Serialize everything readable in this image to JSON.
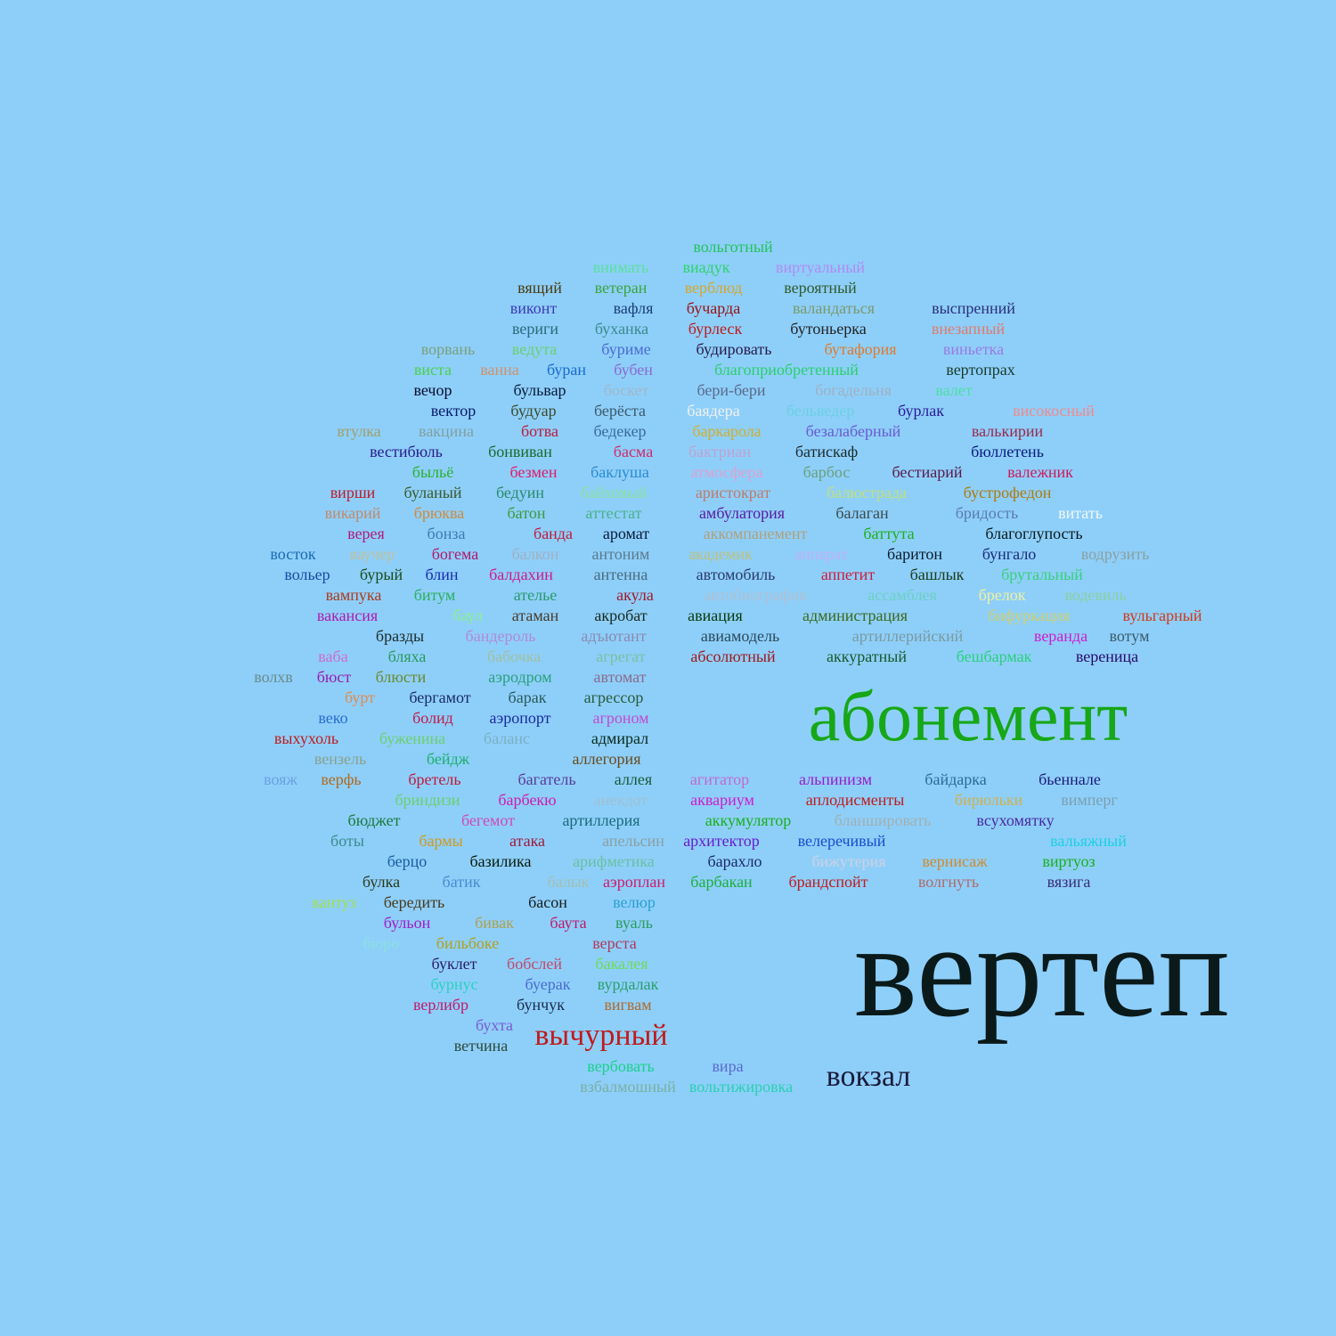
{
  "background": "#8ecffa",
  "words": [
    {
      "text": "вольготный",
      "color": "#22c35a"
    },
    {
      "text": "внимать",
      "color": "#5be09a"
    },
    {
      "text": "виадук",
      "color": "#2ed36a"
    },
    {
      "text": "виртуальный",
      "color": "#b28af0"
    },
    {
      "text": "вящий",
      "color": "#4a3a10"
    },
    {
      "text": "ветеран",
      "color": "#3aa53a"
    },
    {
      "text": "верблюд",
      "color": "#d6a62a"
    },
    {
      "text": "вероятный",
      "color": "#2f5a2a"
    },
    {
      "text": "виконт",
      "color": "#3b3ab5"
    },
    {
      "text": "вафля",
      "color": "#1b3d7a"
    },
    {
      "text": "бучарда",
      "color": "#9a1010"
    },
    {
      "text": "валандаться",
      "color": "#7a9a6a"
    },
    {
      "text": "выспренний",
      "color": "#2a2f7a"
    },
    {
      "text": "вериги",
      "color": "#2a6a7a"
    },
    {
      "text": "буханка",
      "color": "#3a8a8a"
    },
    {
      "text": "бурлеск",
      "color": "#c01a1a"
    },
    {
      "text": "бутоньерка",
      "color": "#222222"
    },
    {
      "text": "внезапный",
      "color": "#e07a6a"
    },
    {
      "text": "ворвань",
      "color": "#7aa07a"
    },
    {
      "text": "ведута",
      "color": "#6ad06a"
    },
    {
      "text": "буриме",
      "color": "#4a6ad0"
    },
    {
      "text": "будировать",
      "color": "#2a1a4a"
    },
    {
      "text": "бутафория",
      "color": "#e07a2a"
    },
    {
      "text": "виньетка",
      "color": "#9a7ae0"
    },
    {
      "text": "виста",
      "color": "#4ad04a"
    },
    {
      "text": "ванна",
      "color": "#d0906a"
    },
    {
      "text": "буран",
      "color": "#1a6ad0"
    },
    {
      "text": "бубен",
      "color": "#8a6ad0"
    },
    {
      "text": "благоприобретенный",
      "color": "#2ad06a"
    },
    {
      "text": "вертопрах",
      "color": "#1a3a2a"
    },
    {
      "text": "вечор",
      "color": "#0a0a2a"
    },
    {
      "text": "бульвар",
      "color": "#0a1a3a"
    },
    {
      "text": "боскет",
      "color": "#a0b8c8"
    },
    {
      "text": "бери-бери",
      "color": "#5a6a8a"
    },
    {
      "text": "богадельня",
      "color": "#a0b0c0"
    },
    {
      "text": "валет",
      "color": "#4ae0a0"
    },
    {
      "text": "вектор",
      "color": "#0a1a6a"
    },
    {
      "text": "будуар",
      "color": "#3a4a2a"
    },
    {
      "text": "берёста",
      "color": "#3a5a6a"
    },
    {
      "text": "баядера",
      "color": "#f0f0f0"
    },
    {
      "text": "бельведер",
      "color": "#6ad0e0"
    },
    {
      "text": "бурлак",
      "color": "#2a1a9a"
    },
    {
      "text": "високосный",
      "color": "#f08a8a"
    },
    {
      "text": "втулка",
      "color": "#a0a06a"
    },
    {
      "text": "вакцина",
      "color": "#80a0a0"
    },
    {
      "text": "ботва",
      "color": "#c01a3a"
    },
    {
      "text": "бедекер",
      "color": "#3a6a9a"
    },
    {
      "text": "баркарола",
      "color": "#d0b02a"
    },
    {
      "text": "безалаберный",
      "color": "#6a5ad0"
    },
    {
      "text": "валькирии",
      "color": "#9a2a4a"
    },
    {
      "text": "вестибюль",
      "color": "#2a1a8a"
    },
    {
      "text": "бонвиван",
      "color": "#1a6a2a"
    },
    {
      "text": "басма",
      "color": "#d02a6a"
    },
    {
      "text": "бактриан",
      "color": "#c0a0d0"
    },
    {
      "text": "батискаф",
      "color": "#1a2a2a"
    },
    {
      "text": "бюллетень",
      "color": "#0a1a7a"
    },
    {
      "text": "быльё",
      "color": "#2ab02a"
    },
    {
      "text": "безмен",
      "color": "#e01a6a"
    },
    {
      "text": "баклуша",
      "color": "#2a8ad0"
    },
    {
      "text": "атмосфера",
      "color": "#e0a0d0"
    },
    {
      "text": "барбос",
      "color": "#6aa07a"
    },
    {
      "text": "бестиарий",
      "color": "#5a1a4a"
    },
    {
      "text": "валежник",
      "color": "#d01a5a"
    },
    {
      "text": "вирши",
      "color": "#c01a2a"
    },
    {
      "text": "буланый",
      "color": "#3a5a2a"
    },
    {
      "text": "бедуин",
      "color": "#2a8a6a"
    },
    {
      "text": "байховый",
      "color": "#8ae09a"
    },
    {
      "text": "аристократ",
      "color": "#c07a6a"
    },
    {
      "text": "балюстрада",
      "color": "#c0e07a"
    },
    {
      "text": "бустрофедон",
      "color": "#b07a0a"
    },
    {
      "text": "викарий",
      "color": "#c08a6a"
    },
    {
      "text": "брюква",
      "color": "#d08a3a"
    },
    {
      "text": "батон",
      "color": "#3a9a3a"
    },
    {
      "text": "аттестат",
      "color": "#4ab08a"
    },
    {
      "text": "амбулатория",
      "color": "#5a1aa0"
    },
    {
      "text": "балаган",
      "color": "#3a4a4a"
    },
    {
      "text": "бридость",
      "color": "#5a7ab0"
    },
    {
      "text": "витать",
      "color": "#f0f8f8"
    },
    {
      "text": "верея",
      "color": "#b01a7a"
    },
    {
      "text": "бонза",
      "color": "#3a7ab0"
    },
    {
      "text": "банда",
      "color": "#c01a3a"
    },
    {
      "text": "аромат",
      "color": "#0a1a3a"
    },
    {
      "text": "аккомпанемент",
      "color": "#b0a07a"
    },
    {
      "text": "баттута",
      "color": "#1ab01a"
    },
    {
      "text": "благоглупость",
      "color": "#0a1a1a"
    },
    {
      "text": "восток",
      "color": "#1a6ab0"
    },
    {
      "text": "ваучер",
      "color": "#c0c09a"
    },
    {
      "text": "богема",
      "color": "#b01a6a"
    },
    {
      "text": "балкон",
      "color": "#a0b0c0"
    },
    {
      "text": "антоним",
      "color": "#5a7a8a"
    },
    {
      "text": "академик",
      "color": "#c0c07a"
    },
    {
      "text": "аппарат",
      "color": "#c0b0f0"
    },
    {
      "text": "баритон",
      "color": "#0a1a2a"
    },
    {
      "text": "бунгало",
      "color": "#1a2a7a"
    },
    {
      "text": "водрузить",
      "color": "#8aa0a0"
    },
    {
      "text": "вольер",
      "color": "#1a4aa0"
    },
    {
      "text": "бурый",
      "color": "#1a4a1a"
    },
    {
      "text": "блин",
      "color": "#1a2ab0"
    },
    {
      "text": "балдахин",
      "color": "#d01a8a"
    },
    {
      "text": "антенна",
      "color": "#4a6a7a"
    },
    {
      "text": "автомобиль",
      "color": "#2a3a6a"
    },
    {
      "text": "аппетит",
      "color": "#d01a3a"
    },
    {
      "text": "башлык",
      "color": "#1a3a1a"
    },
    {
      "text": "брутальный",
      "color": "#3ad07a"
    },
    {
      "text": "вампука",
      "color": "#b03a1a"
    },
    {
      "text": "битум",
      "color": "#2ab05a"
    },
    {
      "text": "ателье",
      "color": "#2a9a6a"
    },
    {
      "text": "акула",
      "color": "#a01a2a"
    },
    {
      "text": "автобиография",
      "color": "#b0c0d0"
    },
    {
      "text": "ассамблея",
      "color": "#6ad0c0"
    },
    {
      "text": "брелок",
      "color": "#f0f0a0"
    },
    {
      "text": "водевиль",
      "color": "#8ad0a0"
    },
    {
      "text": "вакансия",
      "color": "#b01ab0"
    },
    {
      "text": "баул",
      "color": "#8af08a"
    },
    {
      "text": "атаман",
      "color": "#4a3a2a"
    },
    {
      "text": "акробат",
      "color": "#1a2a1a"
    },
    {
      "text": "авиация",
      "color": "#0a3a0a"
    },
    {
      "text": "администрация",
      "color": "#3a6a1a"
    },
    {
      "text": "бифуркация",
      "color": "#d0d06a"
    },
    {
      "text": "вульгарный",
      "color": "#d03a1a"
    },
    {
      "text": "бразды",
      "color": "#1a2a2a"
    },
    {
      "text": "бандероль",
      "color": "#b08ad0"
    },
    {
      "text": "адъютант",
      "color": "#8a8ab0"
    },
    {
      "text": "авиамодель",
      "color": "#2a4a5a"
    },
    {
      "text": "артиллерийский",
      "color": "#7a9aa0"
    },
    {
      "text": "веранда",
      "color": "#d01ad0"
    },
    {
      "text": "вотум",
      "color": "#3a5a6a"
    },
    {
      "text": "ваба",
      "color": "#d06ad0"
    },
    {
      "text": "бляха",
      "color": "#2a9a5a"
    },
    {
      "text": "бабочка",
      "color": "#a0c0a0"
    },
    {
      "text": "агрегат",
      "color": "#7ac0a0"
    },
    {
      "text": "абсолютный",
      "color": "#a01a1a"
    },
    {
      "text": "аккуратный",
      "color": "#1a5a2a"
    },
    {
      "text": "бешбармак",
      "color": "#2ad07a"
    },
    {
      "text": "вереница",
      "color": "#2a0a6a"
    },
    {
      "text": "волхв",
      "color": "#6a8a8a"
    },
    {
      "text": "бюст",
      "color": "#9a1ab0"
    },
    {
      "text": "блюсти",
      "color": "#6a8a2a"
    },
    {
      "text": "аэродром",
      "color": "#2aa07a"
    },
    {
      "text": "автомат",
      "color": "#8a6a8a"
    },
    {
      "text": "абонемент",
      "color": "#17a717"
    },
    {
      "text": "бурт",
      "color": "#e08a4a"
    },
    {
      "text": "бергамот",
      "color": "#1a2a6a"
    },
    {
      "text": "барак",
      "color": "#2a5a5a"
    },
    {
      "text": "агрессор",
      "color": "#2a5a3a"
    },
    {
      "text": "веко",
      "color": "#2a6ad0"
    },
    {
      "text": "болид",
      "color": "#c01a4a"
    },
    {
      "text": "аэропорт",
      "color": "#1a2aa0"
    },
    {
      "text": "агроном",
      "color": "#c04ad0"
    },
    {
      "text": "выхухоль",
      "color": "#c01a1a"
    },
    {
      "text": "буженина",
      "color": "#6ad06a"
    },
    {
      "text": "баланс",
      "color": "#7ab0c0"
    },
    {
      "text": "адмирал",
      "color": "#0a2a1a"
    },
    {
      "text": "вензель",
      "color": "#8aa08a"
    },
    {
      "text": "бейдж",
      "color": "#1ab06a"
    },
    {
      "text": "аллегория",
      "color": "#6a4a1a"
    },
    {
      "text": "вояж",
      "color": "#6aa0e0"
    },
    {
      "text": "верфь",
      "color": "#b06a1a"
    },
    {
      "text": "бретель",
      "color": "#c01a3a"
    },
    {
      "text": "багатель",
      "color": "#5a3a9a"
    },
    {
      "text": "аллея",
      "color": "#1a5a3a"
    },
    {
      "text": "агитатор",
      "color": "#c06ad0"
    },
    {
      "text": "альпинизм",
      "color": "#9a1ad0"
    },
    {
      "text": "байдарка",
      "color": "#2a6a9a"
    },
    {
      "text": "бьеннале",
      "color": "#1a1a7a"
    },
    {
      "text": "бриндизи",
      "color": "#6ad06a"
    },
    {
      "text": "барбекю",
      "color": "#d01ab0"
    },
    {
      "text": "анекдот",
      "color": "#a0c0d0"
    },
    {
      "text": "аквариум",
      "color": "#d01ad0"
    },
    {
      "text": "аплодисменты",
      "color": "#c01a1a"
    },
    {
      "text": "бирюльки",
      "color": "#d0b04a"
    },
    {
      "text": "вимперг",
      "color": "#7aa0b0"
    },
    {
      "text": "бюджет",
      "color": "#1a7a3a"
    },
    {
      "text": "бегемот",
      "color": "#d04ab0"
    },
    {
      "text": "артиллерия",
      "color": "#1a6a7a"
    },
    {
      "text": "аккумулятор",
      "color": "#1ab01a"
    },
    {
      "text": "бланшировать",
      "color": "#a0b0b0"
    },
    {
      "text": "всухомятку",
      "color": "#4a2aa0"
    },
    {
      "text": "боты",
      "color": "#3a8a8a"
    },
    {
      "text": "бармы",
      "color": "#d09a1a"
    },
    {
      "text": "атака",
      "color": "#a01a3a"
    },
    {
      "text": "апельсин",
      "color": "#8aa0a0"
    },
    {
      "text": "архитектор",
      "color": "#6a1ad0"
    },
    {
      "text": "велеречивый",
      "color": "#1a4ad0"
    },
    {
      "text": "вальяжный",
      "color": "#1ad0e0"
    },
    {
      "text": "берцо",
      "color": "#1a5aa0"
    },
    {
      "text": "базилика",
      "color": "#0a1a0a"
    },
    {
      "text": "арифметика",
      "color": "#6ac0a0"
    },
    {
      "text": "барахло",
      "color": "#1a2a6a"
    },
    {
      "text": "бижутерия",
      "color": "#d0d0e0"
    },
    {
      "text": "вернисаж",
      "color": "#d08a2a"
    },
    {
      "text": "виртуоз",
      "color": "#1ab01a"
    },
    {
      "text": "булка",
      "color": "#2a3a1a"
    },
    {
      "text": "батик",
      "color": "#4a8ad0"
    },
    {
      "text": "балык",
      "color": "#a0c0b0"
    },
    {
      "text": "аэроплан",
      "color": "#d01a6a"
    },
    {
      "text": "барбакан",
      "color": "#1ab03a"
    },
    {
      "text": "брандспойт",
      "color": "#c01a1a"
    },
    {
      "text": "волгнуть",
      "color": "#b06a6a"
    },
    {
      "text": "вязига",
      "color": "#3a2a7a"
    },
    {
      "text": "вантуз",
      "color": "#a0e04a"
    },
    {
      "text": "бередить",
      "color": "#4a3a1a"
    },
    {
      "text": "басон",
      "color": "#1a1a1a"
    },
    {
      "text": "велюр",
      "color": "#2aa0d0"
    },
    {
      "text": "бульон",
      "color": "#a01ad0"
    },
    {
      "text": "бивак",
      "color": "#b0a04a"
    },
    {
      "text": "баута",
      "color": "#c01a6a"
    },
    {
      "text": "вуаль",
      "color": "#2a9a5a"
    },
    {
      "text": "бюро",
      "color": "#8ae0e0"
    },
    {
      "text": "бильбоке",
      "color": "#b0a01a"
    },
    {
      "text": "верста",
      "color": "#b03a5a"
    },
    {
      "text": "буклет",
      "color": "#2a1a6a"
    },
    {
      "text": "бобслей",
      "color": "#c04a6a"
    },
    {
      "text": "бакалея",
      "color": "#6ddb55"
    },
    {
      "text": "вертеп",
      "color": "#0a1a1a"
    },
    {
      "text": "бурнус",
      "color": "#2ad0c0"
    },
    {
      "text": "буерак",
      "color": "#4a6ad0"
    },
    {
      "text": "вурдалак",
      "color": "#2aa06a"
    },
    {
      "text": "верлибр",
      "color": "#c01a6a"
    },
    {
      "text": "бунчук",
      "color": "#1a2a4a"
    },
    {
      "text": "вигвам",
      "color": "#b06a2a"
    },
    {
      "text": "бухта",
      "color": "#7a5ad0"
    },
    {
      "text": "вычурный",
      "color": "#c01a1a"
    },
    {
      "text": "ветчина",
      "color": "#2a4a3a"
    },
    {
      "text": "вербовать",
      "color": "#1ad08a"
    },
    {
      "text": "вира",
      "color": "#5a6ad0"
    },
    {
      "text": "вокзал",
      "color": "#1a1a3a"
    },
    {
      "text": "взбалмошный",
      "color": "#7ab0a0"
    },
    {
      "text": "вольтижировка",
      "color": "#2ad0b0"
    }
  ]
}
